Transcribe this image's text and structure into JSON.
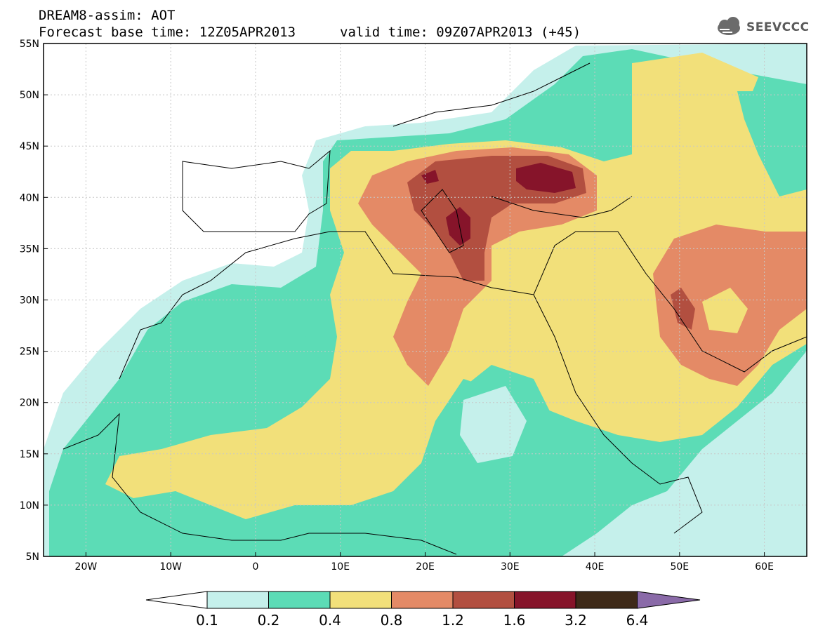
{
  "header": {
    "title_line_1": "DREAM8-assim: AOT",
    "title_line_2": "Forecast base time: 12Z05APR2013",
    "valid_time": "valid time: 09Z07APR2013 (+45)",
    "logo_text": "SEEVCCC",
    "logo_icon": "cloud-icon"
  },
  "map": {
    "lat_labels": [
      "55N",
      "50N",
      "45N",
      "40N",
      "35N",
      "30N",
      "25N",
      "20N",
      "15N",
      "10N",
      "5N"
    ],
    "lon_labels": [
      "20W",
      "10W",
      "0",
      "10E",
      "20E",
      "30E",
      "40E",
      "50E",
      "60E"
    ],
    "lon_range": [
      -25,
      65
    ],
    "lat_range": [
      5,
      55
    ],
    "gridlines": true,
    "variable": "AOT"
  },
  "colorbar": {
    "labels": [
      "0.1",
      "0.2",
      "0.4",
      "0.8",
      "1.2",
      "1.6",
      "3.2",
      "6.4"
    ],
    "colors": {
      "below": "#ffffff",
      "c_0_1_0_2": "#c5f0eb",
      "c_0_2_0_4": "#5cdcb6",
      "c_0_4_0_8": "#f2e07a",
      "c_0_8_1_2": "#e48a66",
      "c_1_2_1_6": "#b24f40",
      "c_1_6_3_2": "#86142a",
      "c_3_2_6_4": "#3e2a19",
      "above": "#8a6aa8"
    }
  }
}
